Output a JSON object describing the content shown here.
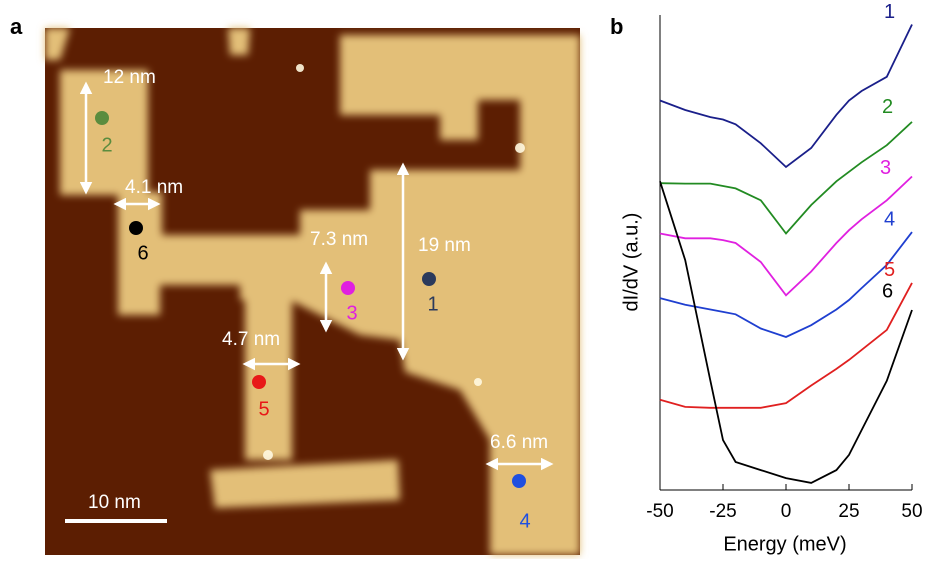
{
  "panel_a": {
    "label": "a",
    "annotations": [
      "12 nm",
      "4.1 nm",
      "7.3 nm",
      "19 nm",
      "4.7 nm",
      "6.6 nm"
    ],
    "scale_bar": "10 nm",
    "points": [
      {
        "label": "2",
        "color": "#5b8c3e"
      },
      {
        "label": "6",
        "color": "#000000"
      },
      {
        "label": "3",
        "color": "#e020e0"
      },
      {
        "label": "1",
        "color": "#2b3a5c"
      },
      {
        "label": "5",
        "color": "#e81818"
      },
      {
        "label": "4",
        "color": "#1f4fe0"
      }
    ]
  },
  "chart_data": {
    "type": "line",
    "panel_label": "b",
    "x_label": "Energy (meV)",
    "y_label": "dI/dV (a.u.)",
    "xlim": [
      -50,
      50
    ],
    "xticks": [
      -50,
      -25,
      0,
      25,
      50
    ],
    "ylim": [
      0,
      100
    ],
    "x": [
      -50,
      -40,
      -30,
      -25,
      -20,
      -10,
      0,
      10,
      20,
      25,
      30,
      40,
      50
    ],
    "series": [
      {
        "name": "1",
        "color": "#1a1f8a",
        "values": [
          82,
          80,
          78.5,
          78,
          77,
          73,
          68,
          72,
          79,
          82,
          84,
          87,
          98
        ]
      },
      {
        "name": "2",
        "color": "#228b22",
        "values": [
          64.6,
          64.5,
          64.5,
          64,
          63.5,
          61,
          54,
          60,
          65,
          67,
          69,
          72.6,
          77.5
        ]
      },
      {
        "name": "3",
        "color": "#e020e0",
        "values": [
          54,
          53,
          53,
          52.6,
          52,
          48,
          41,
          46,
          52,
          54.7,
          57,
          61,
          66
        ]
      },
      {
        "name": "4",
        "color": "#1f3fd0",
        "values": [
          40.4,
          39,
          38,
          37.5,
          37,
          34,
          32.2,
          34.7,
          38,
          40,
          42.5,
          47.4,
          54.3
        ]
      },
      {
        "name": "5",
        "color": "#e02020",
        "values": [
          19,
          17.5,
          17.3,
          17.3,
          17.3,
          17.3,
          18.3,
          22,
          25.5,
          27.4,
          29.5,
          33.7,
          43.6
        ]
      },
      {
        "name": "6",
        "color": "#000000",
        "values": [
          65,
          48.4,
          23,
          10.5,
          5.9,
          4.2,
          2.5,
          1.5,
          4.2,
          7.4,
          12.6,
          23,
          37.9
        ]
      }
    ]
  }
}
